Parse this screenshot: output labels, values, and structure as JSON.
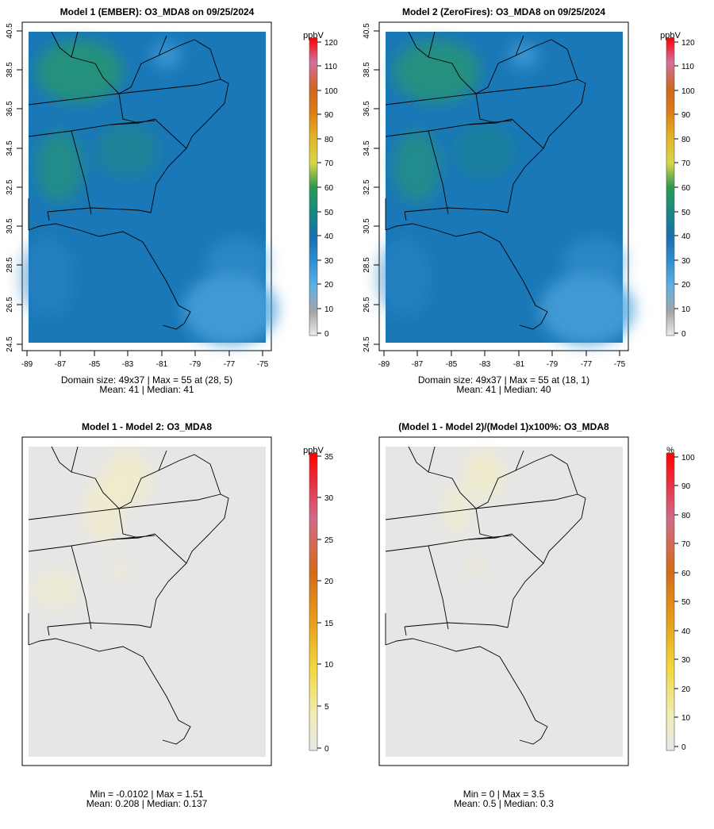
{
  "panels": [
    {
      "id": "p1",
      "kind": "conc",
      "title": "Model 1 (EMBER): O3_MDA8 on 09/25/2024",
      "stats_line1": "Domain size: 49x37 | Max = 55 at (28, 5)",
      "stats_line2": "Mean: 41 |  Median: 41",
      "x_ticks": [
        "-89",
        "-87",
        "-85",
        "-83",
        "-81",
        "-79",
        "-77",
        "-75"
      ],
      "y_ticks": [
        "24.5",
        "26.5",
        "28.5",
        "30.5",
        "32.5",
        "34.5",
        "36.5",
        "38.5",
        "40.5"
      ],
      "colorbar": {
        "unit": "ppbV",
        "ticks": [
          "0",
          "10",
          "20",
          "30",
          "40",
          "50",
          "60",
          "70",
          "80",
          "90",
          "100",
          "110",
          "120"
        ]
      }
    },
    {
      "id": "p2",
      "kind": "conc",
      "title": "Model 2 (ZeroFires): O3_MDA8 on 09/25/2024",
      "stats_line1": "Domain size: 49x37 | Max = 55 at (18, 1)",
      "stats_line2": "Mean: 41 |  Median: 40",
      "x_ticks": [
        "-89",
        "-87",
        "-85",
        "-83",
        "-81",
        "-79",
        "-77",
        "-75"
      ],
      "y_ticks": [
        "24.5",
        "26.5",
        "28.5",
        "30.5",
        "32.5",
        "34.5",
        "36.5",
        "38.5",
        "40.5"
      ],
      "colorbar": {
        "unit": "ppbV",
        "ticks": [
          "0",
          "10",
          "20",
          "30",
          "40",
          "50",
          "60",
          "70",
          "80",
          "90",
          "100",
          "110",
          "120"
        ]
      }
    },
    {
      "id": "p3",
      "kind": "diff",
      "title": "Model 1 - Model 2: O3_MDA8",
      "stats_line1": "Min = -0.0102 | Max = 1.51",
      "stats_line2": "Mean: 0.208 |  Median: 0.137",
      "colorbar": {
        "unit": "ppbV",
        "ticks": [
          "0",
          "5",
          "10",
          "15",
          "20",
          "25",
          "30",
          "35"
        ]
      }
    },
    {
      "id": "p4",
      "kind": "pct",
      "title": "(Model 1 - Model 2)/(Model 1)x100%: O3_MDA8",
      "stats_line1": "Min = 0 | Max = 3.5",
      "stats_line2": "Mean: 0.5 |  Median: 0.3",
      "colorbar": {
        "unit": "%",
        "ticks": [
          "0",
          "10",
          "20",
          "30",
          "40",
          "50",
          "60",
          "70",
          "80",
          "90",
          "100"
        ]
      }
    }
  ],
  "colors": {
    "conc_field": "#1b78b8",
    "conc_low": "#4aa3db",
    "conc_high": "#2a9a6a",
    "diff_field": "#e6e6e6",
    "diff_tint": "#f1eccb",
    "coast": "#000000"
  }
}
